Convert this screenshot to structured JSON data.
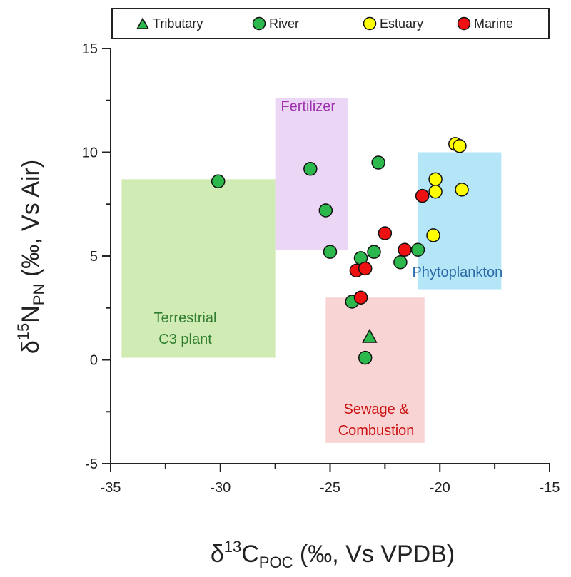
{
  "chart_data": {
    "type": "scatter",
    "xlabel": {
      "prefix": "δ",
      "sup": "13",
      "main": "C",
      "sub": "POC",
      "suffix": " (‰, Vs VPDB)"
    },
    "ylabel": {
      "prefix": "δ",
      "sup": "15",
      "main": "N",
      "sub": "PN",
      "suffix": " (‰, Vs Air)"
    },
    "xlim": [
      -35,
      -15
    ],
    "ylim": [
      -5,
      15
    ],
    "xticks": [
      -35,
      -30,
      -25,
      -20,
      -15
    ],
    "yticks": [
      -5,
      0,
      5,
      10,
      15
    ],
    "grid": false,
    "legend": {
      "placement": "top",
      "entries": [
        {
          "name": "Tributary",
          "marker": "triangle",
          "color": "#2db84d"
        },
        {
          "name": "River",
          "marker": "circle",
          "color": "#2db84d"
        },
        {
          "name": "Estuary",
          "marker": "circle",
          "color": "#ffff00"
        },
        {
          "name": "Marine",
          "marker": "circle",
          "color": "#ee1111"
        }
      ]
    },
    "regions": [
      {
        "name": "Terrestrial C3 plant",
        "lines": [
          "Terrestrial",
          "C3 plant"
        ],
        "x": [
          -34.5,
          -27.5
        ],
        "y": [
          0.1,
          8.7
        ],
        "fill": "#c9e8a8",
        "text_color": "#2e7d32",
        "label_at": [
          -31.6,
          1.8
        ]
      },
      {
        "name": "Fertilizer",
        "lines": [
          "Fertilizer"
        ],
        "x": [
          -27.5,
          -24.2
        ],
        "y": [
          5.3,
          12.6
        ],
        "fill": "#e8cff5",
        "text_color": "#a033b0",
        "label_at": [
          -26.0,
          12.0
        ]
      },
      {
        "name": "Phytoplankton",
        "lines": [
          "Phytoplankton"
        ],
        "x": [
          -21.0,
          -17.2
        ],
        "y": [
          3.4,
          10.0
        ],
        "fill": "#a8e2f7",
        "text_color": "#2a6aa8",
        "label_at": [
          -19.2,
          4.0
        ]
      },
      {
        "name": "Sewage & Combustion",
        "lines": [
          "Sewage &",
          "Combustion"
        ],
        "x": [
          -25.2,
          -20.7
        ],
        "y": [
          -4.0,
          3.0
        ],
        "fill": "#f8cccc",
        "text_color": "#cc1111",
        "label_at": [
          -22.9,
          -2.6
        ]
      }
    ],
    "series": [
      {
        "name": "Tributary",
        "marker": "triangle",
        "color": "#2db84d",
        "points": [
          [
            -23.2,
            1.1
          ]
        ]
      },
      {
        "name": "River",
        "marker": "circle",
        "color": "#2db84d",
        "points": [
          [
            -30.1,
            8.6
          ],
          [
            -25.9,
            9.2
          ],
          [
            -25.2,
            7.2
          ],
          [
            -25.0,
            5.2
          ],
          [
            -22.8,
            9.5
          ],
          [
            -23.6,
            4.9
          ],
          [
            -23.0,
            5.2
          ],
          [
            -21.8,
            4.7
          ],
          [
            -21.0,
            5.3
          ],
          [
            -24.0,
            2.8
          ],
          [
            -23.4,
            0.1
          ]
        ]
      },
      {
        "name": "Estuary",
        "marker": "circle",
        "color": "#ffff00",
        "points": [
          [
            -19.3,
            10.4
          ],
          [
            -19.1,
            10.3
          ],
          [
            -20.2,
            8.7
          ],
          [
            -20.2,
            8.1
          ],
          [
            -19.0,
            8.2
          ],
          [
            -20.3,
            6.0
          ]
        ]
      },
      {
        "name": "Marine",
        "marker": "circle",
        "color": "#ee1111",
        "points": [
          [
            -20.8,
            7.9
          ],
          [
            -22.5,
            6.1
          ],
          [
            -21.6,
            5.3
          ],
          [
            -23.8,
            4.3
          ],
          [
            -23.4,
            4.4
          ],
          [
            -23.6,
            3.0
          ]
        ]
      }
    ]
  }
}
